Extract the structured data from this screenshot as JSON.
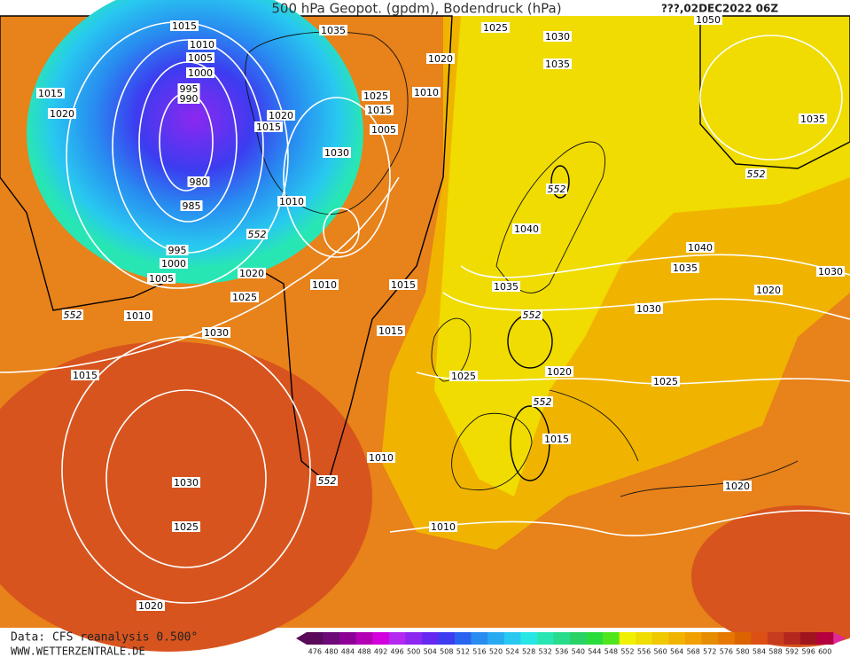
{
  "header": {
    "title": "500 hPa Geopot. (gpdm), Bodendruck (hPa)",
    "date": "???,02DEC2022 06Z"
  },
  "footer": {
    "source": "Data: CFS reanalysis 0.500°",
    "site": "WWW.WETTERZENTRALE.DE"
  },
  "legend": {
    "labels": [
      "476",
      "480",
      "484",
      "488",
      "492",
      "496",
      "500",
      "504",
      "508",
      "512",
      "516",
      "520",
      "524",
      "528",
      "532",
      "536",
      "540",
      "544",
      "548",
      "552",
      "556",
      "560",
      "564",
      "568",
      "572",
      "576",
      "580",
      "584",
      "588",
      "592",
      "596",
      "600"
    ],
    "colors": [
      "#5a0a5a",
      "#6c0a78",
      "#8c0096",
      "#b400b4",
      "#d200dc",
      "#b428f0",
      "#8c28f0",
      "#6428f0",
      "#3c3cf0",
      "#2864f0",
      "#288cf0",
      "#28aaf0",
      "#28c8f0",
      "#28e6e6",
      "#28e6b4",
      "#28dc8c",
      "#28d264",
      "#28dc3c",
      "#50e61e",
      "#f0f000",
      "#f0dc00",
      "#f0c800",
      "#f0b400",
      "#f0a000",
      "#e68c00",
      "#e67800",
      "#dc6400",
      "#dc5014",
      "#c83c1e",
      "#b4281e",
      "#a0141e",
      "#b4003c"
    ]
  },
  "map": {
    "isobar_labels": [
      "1015",
      "1010",
      "1005",
      "1000",
      "995",
      "990",
      "980",
      "985",
      "995",
      "1000",
      "1005",
      "1010",
      "1015",
      "1020",
      "1035",
      "1025",
      "1030",
      "1035",
      "1050",
      "1020",
      "1010",
      "1025",
      "1015",
      "1005",
      "1020",
      "1015",
      "1030",
      "1010",
      "1035",
      "1040",
      "1040",
      "1035",
      "1030",
      "1020",
      "1035",
      "1030",
      "1010",
      "1015",
      "1020",
      "1025",
      "1030",
      "1015",
      "1015",
      "1025",
      "1020",
      "1025",
      "1015",
      "1010",
      "1030",
      "1025",
      "1010",
      "1020",
      "1020"
    ],
    "geopotential_labels": [
      "552",
      "552",
      "552",
      "552",
      "552",
      "552",
      "552"
    ]
  }
}
